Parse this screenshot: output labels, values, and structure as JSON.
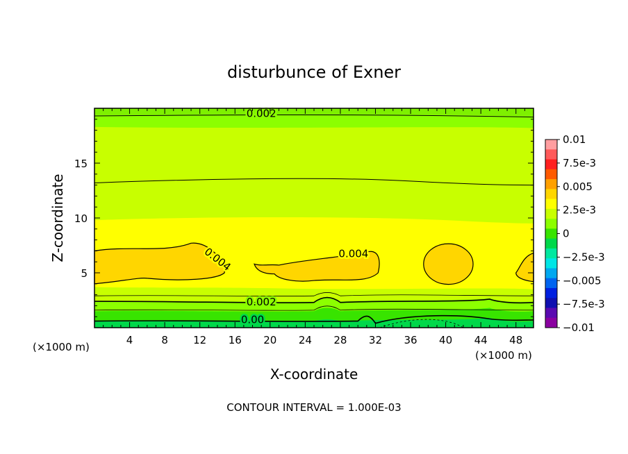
{
  "chart_data": {
    "type": "heatmap",
    "title": "disturbunce of Exner",
    "xlabel": "X-coordinate",
    "ylabel": "Z-coordinate",
    "x_unit_left": "(×1000 m)",
    "x_unit_right": "(×1000 m)",
    "xlim": [
      0,
      50
    ],
    "ylim": [
      0,
      20
    ],
    "x_ticks": [
      "4",
      "8",
      "12",
      "16",
      "20",
      "24",
      "28",
      "32",
      "36",
      "40",
      "44",
      "48"
    ],
    "y_ticks": [
      "5",
      "10",
      "15"
    ],
    "footer": "CONTOUR INTERVAL = 1.000E-03",
    "contour_interval": 0.001,
    "contour_labels": [
      {
        "text": "0.002",
        "x": 19,
        "z": 19.5
      },
      {
        "text": "0.004",
        "x": 14,
        "z": 6.2
      },
      {
        "text": "0.004",
        "x": 29.5,
        "z": 6.7
      },
      {
        "text": "0.002",
        "x": 19,
        "z": 2.3
      },
      {
        "text": "0.00",
        "x": 18,
        "z": 0.7
      }
    ],
    "colorbar": {
      "range": [
        -0.01,
        0.01
      ],
      "ticks": [
        "0.01",
        "7.5e-3",
        "0.005",
        "2.5e-3",
        "0",
        "−2.5e-3",
        "−0.005",
        "−7.5e-3",
        "−0.01"
      ],
      "colors": [
        "#ff9ea0",
        "#ff5a5a",
        "#ff2020",
        "#ff5a00",
        "#ffa000",
        "#ffd600",
        "#ffff00",
        "#c8ff00",
        "#8cff00",
        "#38e400",
        "#00d84a",
        "#00e8a0",
        "#00e6e6",
        "#00a8f0",
        "#0064f0",
        "#0020e0",
        "#1010b0",
        "#5a0ab0",
        "#8a00a0"
      ]
    },
    "bands": [
      {
        "level": "<0.0005",
        "color": "#00d84a"
      },
      {
        "level": "0.0005-0.0015",
        "color": "#38e400"
      },
      {
        "level": "0.0015-0.0025",
        "color": "#8cff00"
      },
      {
        "level": "0.0025-0.0035",
        "color": "#c8ff00"
      },
      {
        "level": "0.0035-0.0045",
        "color": "#ffff00"
      },
      {
        "level": ">0.0045",
        "color": "#ffd600"
      }
    ]
  }
}
